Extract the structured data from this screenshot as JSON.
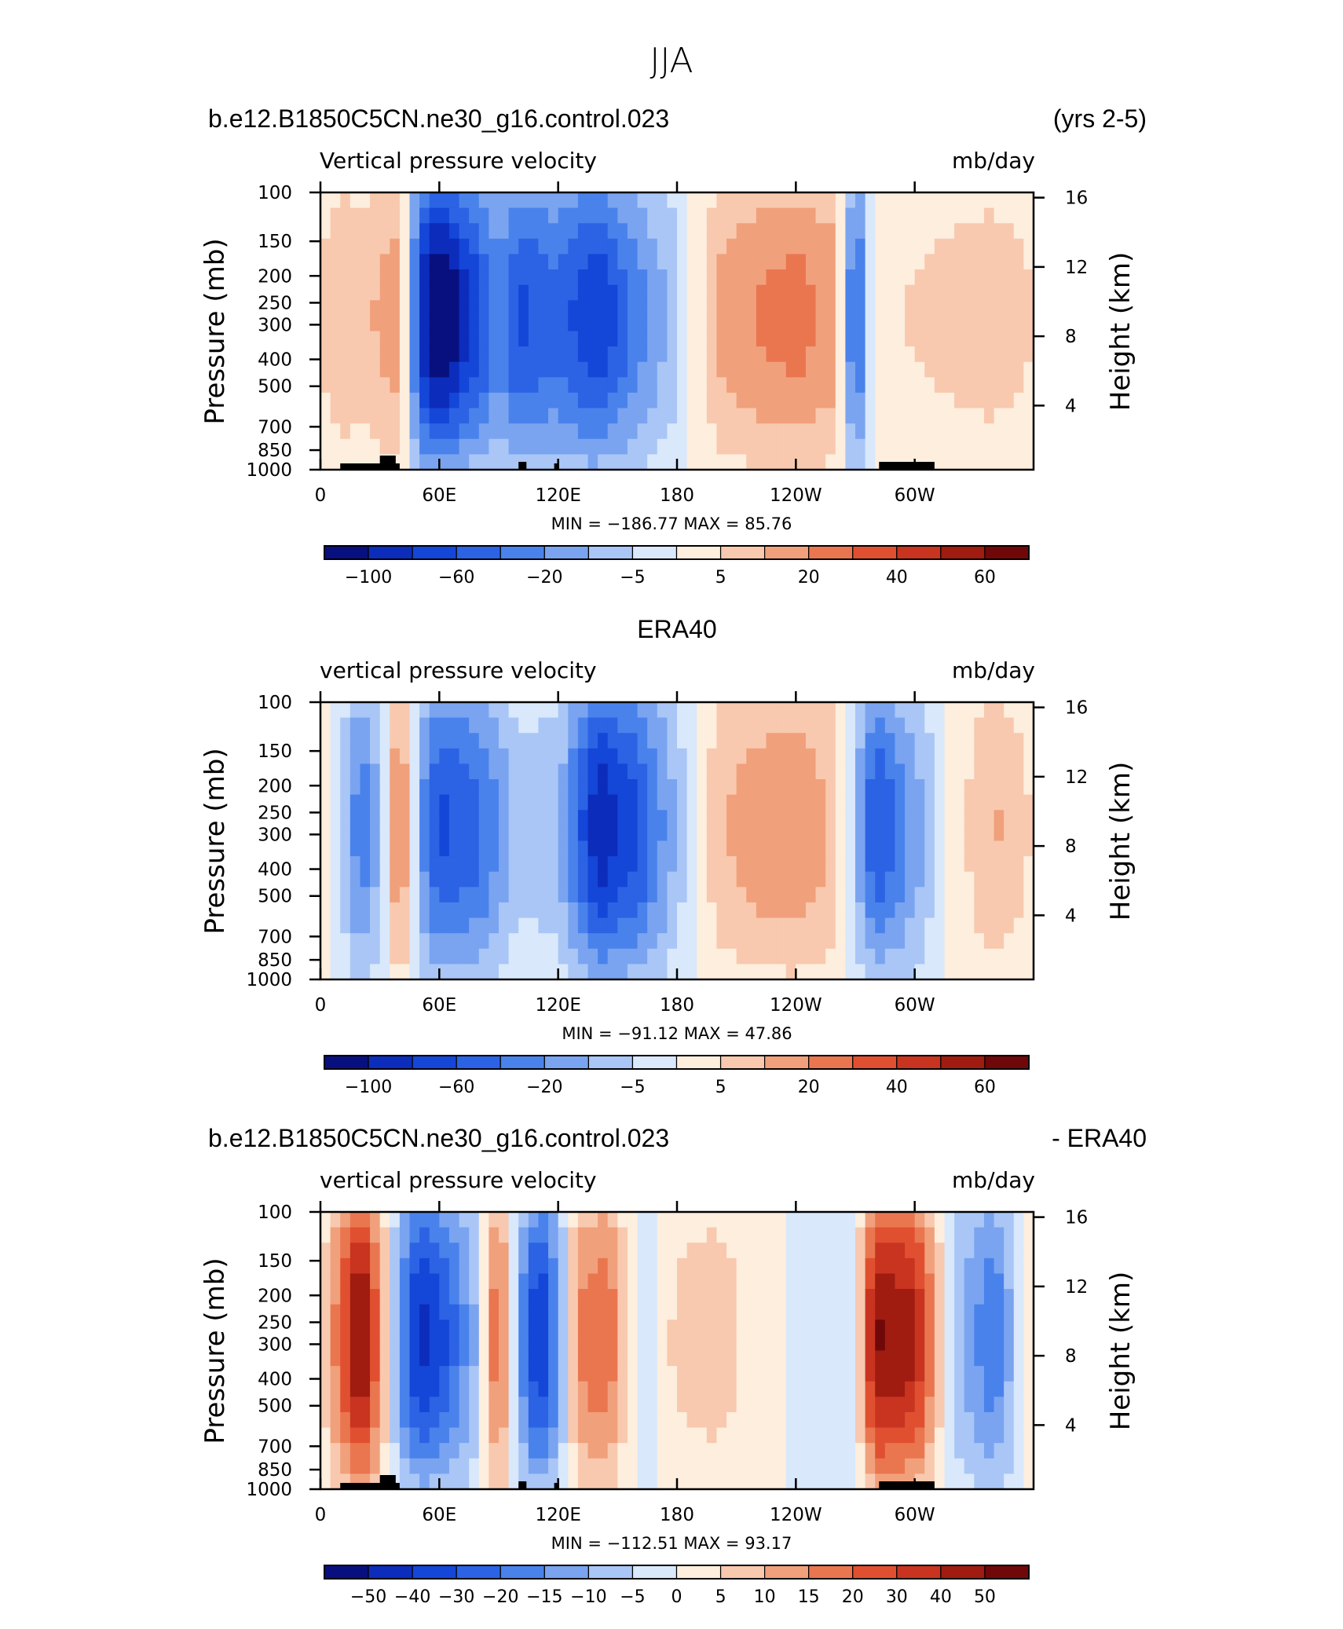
{
  "figure_title": "JJA",
  "colorbar_levels_standard": [
    "−100",
    "−60",
    "−20",
    "−5",
    "5",
    "20",
    "40",
    "60"
  ],
  "colorbar_levels_diff": [
    "−50",
    "−40",
    "−30",
    "−20",
    "−15",
    "−10",
    "−5",
    "0",
    "5",
    "10",
    "15",
    "20",
    "30",
    "40",
    "50"
  ],
  "colorbar_colors": [
    "#08107f",
    "#0c2cbc",
    "#1446d8",
    "#2b63e4",
    "#4a82ec",
    "#7aa4f0",
    "#a9c6f6",
    "#d9e8fb",
    "#fdeede",
    "#f8c9ae",
    "#f1a07c",
    "#ea7650",
    "#e05030",
    "#c83420",
    "#a01c10",
    "#70080a"
  ],
  "chart_data": [
    {
      "type": "heatmap",
      "title_left": "b.e12.B1850C5CN.ne30_g16.control.023",
      "title_right": "(yrs 2-5)",
      "subtitle_left": "Vertical pressure velocity",
      "subtitle_right": "mb/day",
      "ylabel": "Pressure (mb)",
      "ylabel_right": "Height (km)",
      "stats": "MIN = −186.77   MAX =  85.76",
      "min": -186.77,
      "max": 85.76,
      "x_ticks": [
        "0",
        "60E",
        "120E",
        "180",
        "120W",
        "60W"
      ],
      "y_ticks": [
        "100",
        "150",
        "200",
        "250",
        "300",
        "400",
        "500",
        "700",
        "850",
        "1000"
      ],
      "y_ticks_right": [
        "16",
        "12",
        "8",
        "4"
      ],
      "colorbar_labels": [
        "−100",
        "−60",
        "−20",
        "−5",
        "5",
        "20",
        "40",
        "60"
      ],
      "longitude_profile": [
        [
          0,
          12
        ],
        [
          10,
          22
        ],
        [
          20,
          18
        ],
        [
          30,
          25
        ],
        [
          40,
          30
        ],
        [
          50,
          -70
        ],
        [
          60,
          -100
        ],
        [
          70,
          -80
        ],
        [
          90,
          -40
        ],
        [
          100,
          -60
        ],
        [
          120,
          -50
        ],
        [
          140,
          -70
        ],
        [
          160,
          -40
        ],
        [
          180,
          -15
        ],
        [
          200,
          25
        ],
        [
          220,
          35
        ],
        [
          240,
          40
        ],
        [
          260,
          30
        ],
        [
          270,
          -60
        ],
        [
          280,
          10
        ],
        [
          300,
          12
        ],
        [
          320,
          15
        ],
        [
          340,
          18
        ],
        [
          360,
          12
        ]
      ]
    },
    {
      "type": "heatmap",
      "title_center": "ERA40",
      "subtitle_left": "vertical pressure velocity",
      "subtitle_right": "mb/day",
      "ylabel": "Pressure (mb)",
      "ylabel_right": "Height (km)",
      "stats": "MIN = −91.12   MAX =  47.86",
      "min": -91.12,
      "max": 47.86,
      "x_ticks": [
        "0",
        "60E",
        "120E",
        "180",
        "120W",
        "60W"
      ],
      "y_ticks": [
        "100",
        "150",
        "200",
        "250",
        "300",
        "400",
        "500",
        "700",
        "850",
        "1000"
      ],
      "y_ticks_right": [
        "16",
        "12",
        "8",
        "4"
      ],
      "colorbar_labels": [
        "−100",
        "−60",
        "−20",
        "−5",
        "5",
        "20",
        "40",
        "60"
      ],
      "longitude_profile": [
        [
          0,
          8
        ],
        [
          10,
          -10
        ],
        [
          20,
          -45
        ],
        [
          30,
          -20
        ],
        [
          40,
          45
        ],
        [
          50,
          -30
        ],
        [
          60,
          -60
        ],
        [
          80,
          -50
        ],
        [
          100,
          -15
        ],
        [
          120,
          -20
        ],
        [
          140,
          -80
        ],
        [
          160,
          -60
        ],
        [
          180,
          -20
        ],
        [
          200,
          20
        ],
        [
          220,
          30
        ],
        [
          240,
          35
        ],
        [
          260,
          20
        ],
        [
          280,
          -60
        ],
        [
          300,
          -30
        ],
        [
          320,
          5
        ],
        [
          340,
          25
        ],
        [
          360,
          10
        ]
      ]
    },
    {
      "type": "heatmap",
      "title_left": "b.e12.B1850C5CN.ne30_g16.control.023",
      "title_right": "- ERA40",
      "subtitle_left": "vertical pressure velocity",
      "subtitle_right": "mb/day",
      "ylabel": "Pressure (mb)",
      "ylabel_right": "Height (km)",
      "stats": "MIN = −112.51   MAX =  93.17",
      "min": -112.51,
      "max": 93.17,
      "x_ticks": [
        "0",
        "60E",
        "120E",
        "180",
        "120W",
        "60W"
      ],
      "y_ticks": [
        "100",
        "150",
        "200",
        "250",
        "300",
        "400",
        "500",
        "700",
        "850",
        "1000"
      ],
      "y_ticks_right": [
        "16",
        "12",
        "8",
        "4"
      ],
      "colorbar_labels": [
        "−50",
        "−40",
        "−30",
        "−20",
        "−15",
        "−10",
        "−5",
        "0",
        "5",
        "10",
        "15",
        "20",
        "30",
        "40",
        "50"
      ],
      "longitude_profile": [
        [
          0,
          4
        ],
        [
          10,
          25
        ],
        [
          20,
          50
        ],
        [
          30,
          20
        ],
        [
          40,
          -20
        ],
        [
          50,
          -40
        ],
        [
          60,
          -35
        ],
        [
          80,
          -10
        ],
        [
          90,
          30
        ],
        [
          100,
          -15
        ],
        [
          110,
          -40
        ],
        [
          120,
          -20
        ],
        [
          130,
          20
        ],
        [
          145,
          25
        ],
        [
          160,
          -5
        ],
        [
          180,
          8
        ],
        [
          200,
          10
        ],
        [
          240,
          -2
        ],
        [
          270,
          -2
        ],
        [
          280,
          45
        ],
        [
          300,
          40
        ],
        [
          320,
          -10
        ],
        [
          340,
          -25
        ],
        [
          360,
          5
        ]
      ]
    }
  ]
}
